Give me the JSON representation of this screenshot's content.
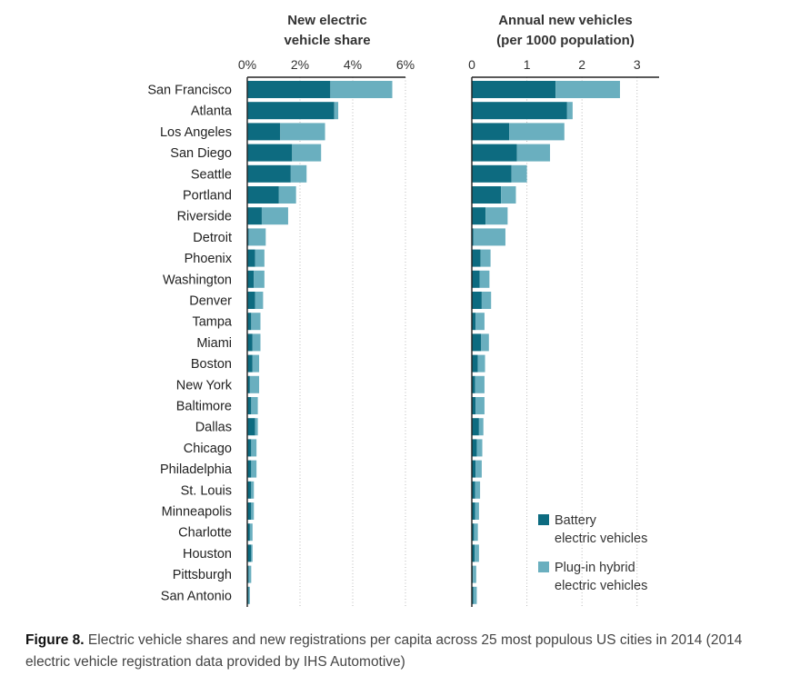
{
  "chart_data": [
    {
      "type": "bar",
      "orientation": "horizontal",
      "stacked": true,
      "title": "New electric vehicle share",
      "x_tick_labels": [
        "0%",
        "2%",
        "4%",
        "6%"
      ],
      "xlim": [
        0,
        6
      ],
      "unit": "%",
      "categories": [
        "San Francisco",
        "Atlanta",
        "Los Angeles",
        "San Diego",
        "Seattle",
        "Portland",
        "Riverside",
        "Detroit",
        "Phoenix",
        "Washington",
        "Denver",
        "Tampa",
        "Miami",
        "Boston",
        "New York",
        "Baltimore",
        "Dallas",
        "Chicago",
        "Philadelphia",
        "St. Louis",
        "Minneapolis",
        "Charlotte",
        "Houston",
        "Pittsburgh",
        "San Antonio"
      ],
      "series": [
        {
          "name": "Battery electric vehicles",
          "color": "#0d6b80",
          "values": [
            3.15,
            3.3,
            1.25,
            1.7,
            1.65,
            1.2,
            0.55,
            0.05,
            0.3,
            0.25,
            0.3,
            0.15,
            0.2,
            0.2,
            0.1,
            0.15,
            0.3,
            0.15,
            0.15,
            0.15,
            0.15,
            0.1,
            0.15,
            0.05,
            0.05
          ]
        },
        {
          "name": "Plug-in hybrid electric vehicles",
          "color": "#6aafbf",
          "values": [
            2.35,
            0.15,
            1.7,
            1.1,
            0.6,
            0.65,
            1.0,
            0.65,
            0.35,
            0.4,
            0.3,
            0.35,
            0.3,
            0.25,
            0.35,
            0.25,
            0.1,
            0.2,
            0.2,
            0.1,
            0.1,
            0.1,
            0.05,
            0.1,
            0.05
          ]
        }
      ]
    },
    {
      "type": "bar",
      "orientation": "horizontal",
      "stacked": true,
      "title": "Annual new vehicles (per 1000 population)",
      "x_tick_labels": [
        "0",
        "1",
        "2",
        "3"
      ],
      "xlim": [
        0,
        3.4
      ],
      "categories": [
        "San Francisco",
        "Atlanta",
        "Los Angeles",
        "San Diego",
        "Seattle",
        "Portland",
        "Riverside",
        "Detroit",
        "Phoenix",
        "Washington",
        "Denver",
        "Tampa",
        "Miami",
        "Boston",
        "New York",
        "Baltimore",
        "Dallas",
        "Chicago",
        "Philadelphia",
        "St. Louis",
        "Minneapolis",
        "Charlotte",
        "Houston",
        "Pittsburgh",
        "San Antonio"
      ],
      "series": [
        {
          "name": "Battery electric vehicles",
          "color": "#0d6b80",
          "values": [
            1.52,
            1.73,
            0.68,
            0.82,
            0.72,
            0.53,
            0.25,
            0.03,
            0.16,
            0.14,
            0.18,
            0.07,
            0.17,
            0.11,
            0.06,
            0.07,
            0.13,
            0.09,
            0.07,
            0.06,
            0.06,
            0.04,
            0.05,
            0.02,
            0.03
          ]
        },
        {
          "name": "Plug-in hybrid electric vehicles",
          "color": "#6aafbf",
          "values": [
            1.17,
            0.1,
            1.0,
            0.6,
            0.28,
            0.27,
            0.4,
            0.58,
            0.18,
            0.18,
            0.17,
            0.16,
            0.14,
            0.13,
            0.17,
            0.16,
            0.08,
            0.1,
            0.11,
            0.09,
            0.07,
            0.07,
            0.08,
            0.06,
            0.06
          ]
        }
      ]
    }
  ],
  "titles": {
    "left_line1": "New electric",
    "left_line2": "vehicle share",
    "right_line1": "Annual new vehicles",
    "right_line2": "(per 1000 population)"
  },
  "legend": {
    "bev_line1": "Battery",
    "bev_line2": "electric vehicles",
    "phev_line1": "Plug-in hybrid",
    "phev_line2": "electric vehicles"
  },
  "caption": {
    "label": "Figure 8.",
    "text": " Electric vehicle shares and new registrations per capita across 25 most populous US cities in 2014 (2014 electric vehicle registration data provided by IHS Automotive)"
  }
}
